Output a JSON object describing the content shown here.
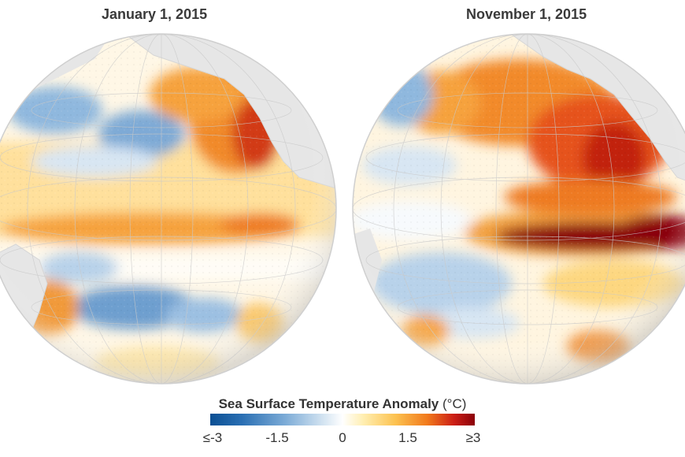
{
  "maps": [
    {
      "title": "January 1, 2015"
    },
    {
      "title": "November 1, 2015"
    }
  ],
  "legend": {
    "title": "Sea Surface Temperature Anomaly",
    "unit": "(°C)",
    "ticks": [
      "≤-3",
      "-1.5",
      "0",
      "1.5",
      "≥3"
    ],
    "colors": [
      "#0b4f93",
      "#2a6fb3",
      "#7aaad6",
      "#cfe1f0",
      "#ffffff",
      "#ffeeb0",
      "#fcc250",
      "#f17a1c",
      "#cc1f16",
      "#8b0009"
    ]
  }
}
